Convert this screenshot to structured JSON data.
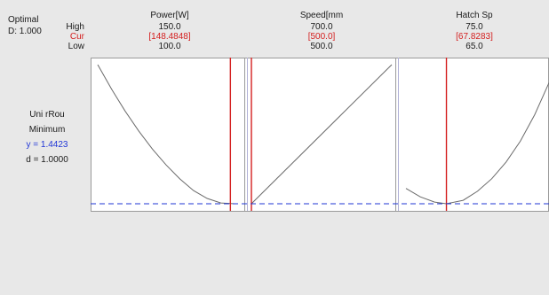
{
  "header": {
    "optimal_label": "Optimal",
    "d_label": "D: 1.000",
    "row_labels": {
      "high": "High",
      "cur": "Cur",
      "low": "Low"
    }
  },
  "response": {
    "name": "Uni rRou",
    "goal": "Minimum",
    "y_text": "y = 1.4423",
    "d_text": "d = 1.0000"
  },
  "colors": {
    "background": "#e8e8e8",
    "plot_background": "#ffffff",
    "current_line": "#d42020",
    "target_line": "#1f35d6",
    "curve": "#6a6a6a"
  },
  "chart_data": {
    "type": "line",
    "title": "",
    "panels": [
      {
        "factor": "Power[W]",
        "high": "150.0",
        "cur": "[148.4848]",
        "low": "100.0",
        "xlim": [
          100.0,
          150.0
        ],
        "current": 148.4848,
        "x": [
          100,
          105,
          110,
          115,
          120,
          125,
          130,
          135,
          140,
          145,
          150
        ],
        "y": [
          1.0,
          0.826,
          0.667,
          0.523,
          0.393,
          0.279,
          0.179,
          0.095,
          0.038,
          0.006,
          0.0
        ]
      },
      {
        "factor": "Speed[mm",
        "high": "700.0",
        "cur": "[500.0]",
        "low": "500.0",
        "xlim": [
          500.0,
          700.0
        ],
        "current": 500.0,
        "x": [
          500,
          700
        ],
        "y": [
          0.0,
          1.0
        ]
      },
      {
        "factor": "Hatch Sp",
        "high": "75.0",
        "cur": "[67.8283]",
        "low": "65.0",
        "xlim": [
          65.0,
          75.0
        ],
        "current": 67.8283,
        "x": [
          65,
          66,
          67,
          67.8283,
          69,
          70,
          71,
          72,
          73,
          74,
          75
        ],
        "y": [
          0.11,
          0.05,
          0.012,
          0.0,
          0.025,
          0.09,
          0.18,
          0.3,
          0.45,
          0.64,
          0.87
        ]
      }
    ],
    "ylim": [
      0.0,
      1.0
    ],
    "target_line_y": 0.0
  }
}
